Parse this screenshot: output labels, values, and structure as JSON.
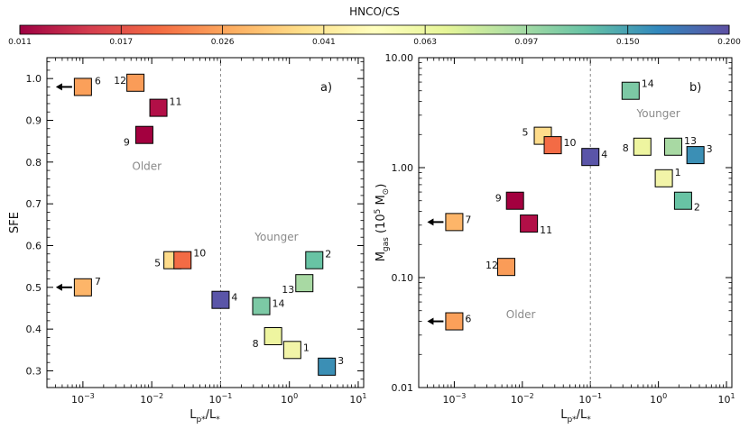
{
  "colorbar": {
    "title": "HNCO/CS",
    "ticks": [
      "0.011",
      "0.017",
      "0.026",
      "0.041",
      "0.063",
      "0.097",
      "0.150",
      "0.200"
    ]
  },
  "xaxis_label": "L_p*/L_*",
  "chart_data": [
    {
      "type": "scatter",
      "panel": "a)",
      "ylabel": "SFE",
      "xscale": "log",
      "yscale": "linear",
      "xlim": [
        0.0003,
        12
      ],
      "ylim": [
        0.26,
        1.05
      ],
      "xticks": [
        "10^-3",
        "10^-2",
        "10^-1",
        "10^0",
        "10^1"
      ],
      "yticks": [
        "0.3",
        "0.4",
        "0.5",
        "0.6",
        "0.7",
        "0.8",
        "0.9",
        "1.0"
      ],
      "divider_x": 0.1,
      "annotations": [
        {
          "text": "Older",
          "x": 0.0085,
          "y": 0.79
        },
        {
          "text": "Younger",
          "x": 0.65,
          "y": 0.62
        }
      ],
      "points": [
        {
          "id": "1",
          "x": 1.1,
          "y": 0.35,
          "color": "#f2f4a8",
          "upper_limit": false
        },
        {
          "id": "2",
          "x": 2.3,
          "y": 0.565,
          "color": "#68c3a4",
          "upper_limit": false
        },
        {
          "id": "3",
          "x": 3.5,
          "y": 0.31,
          "color": "#3b8fb5",
          "upper_limit": false
        },
        {
          "id": "4",
          "x": 0.1,
          "y": 0.47,
          "color": "#5a55a8",
          "upper_limit": false
        },
        {
          "id": "5",
          "x": 0.02,
          "y": 0.565,
          "color": "#fedc8b",
          "upper_limit": false
        },
        {
          "id": "6",
          "x": 0.001,
          "y": 0.98,
          "color": "#fba05a",
          "upper_limit": true
        },
        {
          "id": "7",
          "x": 0.001,
          "y": 0.5,
          "color": "#fdb569",
          "upper_limit": true
        },
        {
          "id": "8",
          "x": 0.58,
          "y": 0.383,
          "color": "#eef5a0",
          "upper_limit": false
        },
        {
          "id": "9",
          "x": 0.0078,
          "y": 0.865,
          "color": "#a3003f",
          "upper_limit": false
        },
        {
          "id": "10",
          "x": 0.028,
          "y": 0.565,
          "color": "#f36b45",
          "upper_limit": false
        },
        {
          "id": "11",
          "x": 0.0125,
          "y": 0.93,
          "color": "#b20f47",
          "upper_limit": false
        },
        {
          "id": "12",
          "x": 0.0058,
          "y": 0.99,
          "color": "#fa9c58",
          "upper_limit": false
        },
        {
          "id": "13",
          "x": 1.65,
          "y": 0.51,
          "color": "#a8d9a3",
          "upper_limit": false
        },
        {
          "id": "14",
          "x": 0.39,
          "y": 0.455,
          "color": "#7cc9a5",
          "upper_limit": false
        }
      ]
    },
    {
      "type": "scatter",
      "panel": "b)",
      "ylabel": "M_gas (10^5 M_⊙)",
      "xscale": "log",
      "yscale": "log",
      "xlim": [
        0.0003,
        12
      ],
      "ylim": [
        0.01,
        10
      ],
      "xticks": [
        "10^-3",
        "10^-2",
        "10^-1",
        "10^0",
        "10^1"
      ],
      "yticks": [
        "0.01",
        "0.10",
        "1.00",
        "10.00"
      ],
      "divider_x": 0.1,
      "annotations": [
        {
          "text": "Younger",
          "x": 1.0,
          "y": 3.1
        },
        {
          "text": "Older",
          "x": 0.0095,
          "y": 0.046
        }
      ],
      "points": [
        {
          "id": "1",
          "x": 1.2,
          "y": 0.8,
          "color": "#f2f4a8",
          "upper_limit": false
        },
        {
          "id": "2",
          "x": 2.3,
          "y": 0.5,
          "color": "#68c3a4",
          "upper_limit": false
        },
        {
          "id": "3",
          "x": 3.5,
          "y": 1.3,
          "color": "#3b8fb5",
          "upper_limit": false
        },
        {
          "id": "4",
          "x": 0.1,
          "y": 1.25,
          "color": "#5a55a8",
          "upper_limit": false
        },
        {
          "id": "5",
          "x": 0.02,
          "y": 1.95,
          "color": "#fedc8b",
          "upper_limit": false
        },
        {
          "id": "6",
          "x": 0.001,
          "y": 0.04,
          "color": "#fba05a",
          "upper_limit": true
        },
        {
          "id": "7",
          "x": 0.001,
          "y": 0.32,
          "color": "#fdb569",
          "upper_limit": true
        },
        {
          "id": "8",
          "x": 0.58,
          "y": 1.55,
          "color": "#eef5a0",
          "upper_limit": false
        },
        {
          "id": "9",
          "x": 0.0078,
          "y": 0.5,
          "color": "#a3003f",
          "upper_limit": false
        },
        {
          "id": "10",
          "x": 0.028,
          "y": 1.6,
          "color": "#f36b45",
          "upper_limit": false
        },
        {
          "id": "11",
          "x": 0.0125,
          "y": 0.31,
          "color": "#b20f47",
          "upper_limit": false
        },
        {
          "id": "12",
          "x": 0.0058,
          "y": 0.125,
          "color": "#fa9c58",
          "upper_limit": false
        },
        {
          "id": "13",
          "x": 1.65,
          "y": 1.55,
          "color": "#a8d9a3",
          "upper_limit": false
        },
        {
          "id": "14",
          "x": 0.39,
          "y": 5.0,
          "color": "#7cc9a5",
          "upper_limit": false
        }
      ]
    }
  ]
}
